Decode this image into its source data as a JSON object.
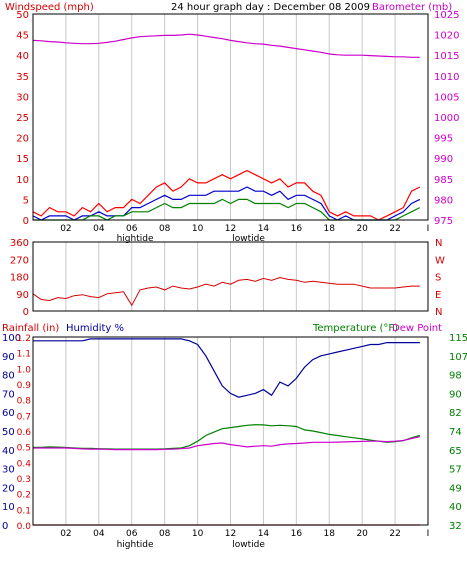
{
  "colors": {
    "wind": "#d40000",
    "windBright": "#ff0000",
    "gust": "#0000cc",
    "green": "#008000",
    "baro": "#cc00cc",
    "humidity": "#000099",
    "temperature": "#008000",
    "dewpoint": "#cc00cc",
    "rain": "#d40000",
    "grid": "#c8c8c8",
    "axis": "#000000"
  },
  "chart_data": [
    {
      "id": "wind-baro",
      "type": "line",
      "title": "24 hour graph day : December 08 2009",
      "ylabel_left": "Windspeed (mph)",
      "ylabel_right": "Barometer (mb)",
      "yticks_left": [
        "0",
        "5",
        "10",
        "15",
        "20",
        "25",
        "30",
        "35",
        "40",
        "45",
        "50"
      ],
      "yticks_right": [
        "975",
        "980",
        "985",
        "990",
        "995",
        "1000",
        "1005",
        "1010",
        "1015",
        "1020",
        "1025"
      ],
      "ylim_left": [
        0,
        50
      ],
      "ylim_right": [
        975,
        1025
      ],
      "xticks": [
        "02",
        "04",
        "06",
        "08",
        "10",
        "12",
        "14",
        "16",
        "18",
        "20",
        "22",
        "I"
      ],
      "x_annotations": [
        {
          "text": "hightide",
          "x": 6.2
        },
        {
          "text": "lowtide",
          "x": 13.1
        }
      ],
      "grid": true,
      "x": [
        0,
        0.5,
        1,
        1.5,
        2,
        2.5,
        3,
        3.5,
        4,
        4.5,
        5,
        5.5,
        6,
        6.5,
        7,
        7.5,
        8,
        8.5,
        9,
        9.5,
        10,
        10.5,
        11,
        11.5,
        12,
        12.5,
        13,
        13.5,
        14,
        14.5,
        15,
        15.5,
        16,
        16.5,
        17,
        17.5,
        18,
        18.5,
        19,
        19.5,
        20,
        20.5,
        21,
        21.5,
        22,
        22.5,
        23,
        23.5
      ],
      "series": [
        {
          "name": "",
          "color_key": "windBright",
          "values": [
            2,
            1,
            3,
            2,
            2,
            1,
            3,
            2,
            4,
            2,
            3,
            3,
            5,
            4,
            6,
            8,
            9,
            7,
            8,
            10,
            9,
            9,
            10,
            11,
            10,
            11,
            12,
            11,
            10,
            9,
            10,
            8,
            9,
            9,
            7,
            6,
            2,
            1,
            2,
            1,
            1,
            1,
            0,
            1,
            2,
            3,
            7,
            8
          ]
        },
        {
          "name": "",
          "color_key": "gust",
          "values": [
            1,
            0,
            1,
            1,
            1,
            0,
            1,
            1,
            2,
            1,
            1,
            1,
            3,
            3,
            4,
            5,
            6,
            5,
            5,
            6,
            6,
            6,
            7,
            7,
            7,
            7,
            8,
            7,
            7,
            6,
            7,
            5,
            6,
            6,
            5,
            4,
            1,
            0,
            1,
            0,
            0,
            0,
            0,
            0,
            1,
            2,
            4,
            5
          ]
        },
        {
          "name": "",
          "color_key": "green",
          "values": [
            0,
            0,
            0,
            0,
            0,
            0,
            0,
            1,
            1,
            0,
            1,
            1,
            2,
            2,
            2,
            3,
            4,
            3,
            3,
            4,
            4,
            4,
            4,
            5,
            4,
            5,
            5,
            4,
            4,
            4,
            4,
            3,
            4,
            4,
            3,
            2,
            0,
            0,
            0,
            0,
            0,
            0,
            0,
            0,
            0,
            1,
            2,
            3
          ]
        },
        {
          "name": "",
          "color_key": "baro",
          "axis": "right",
          "values": [
            1018.6,
            1018.5,
            1018.3,
            1018.2,
            1018.0,
            1017.9,
            1017.8,
            1017.8,
            1017.9,
            1018.1,
            1018.4,
            1018.8,
            1019.2,
            1019.5,
            1019.6,
            1019.7,
            1019.8,
            1019.8,
            1019.9,
            1020.1,
            1019.9,
            1019.6,
            1019.3,
            1019.0,
            1018.6,
            1018.3,
            1018.0,
            1017.8,
            1017.7,
            1017.4,
            1017.2,
            1016.9,
            1016.6,
            1016.3,
            1016.0,
            1015.7,
            1015.3,
            1015.1,
            1015.0,
            1015.0,
            1015.0,
            1014.9,
            1014.8,
            1014.7,
            1014.6,
            1014.6,
            1014.5,
            1014.5
          ]
        }
      ]
    },
    {
      "id": "wind-direction",
      "type": "line",
      "yticks_left": [
        "360",
        "270",
        "180",
        "90",
        "0"
      ],
      "yticks_right": [
        "N",
        "W",
        "S",
        "E",
        "N"
      ],
      "ylim": [
        0,
        360
      ],
      "grid": true,
      "x": [
        0,
        0.5,
        1,
        1.5,
        2,
        2.5,
        3,
        3.5,
        4,
        4.5,
        5,
        5.5,
        6,
        6.5,
        7,
        7.5,
        8,
        8.5,
        9,
        9.5,
        10,
        10.5,
        11,
        11.5,
        12,
        12.5,
        13,
        13.5,
        14,
        14.5,
        15,
        15.5,
        16,
        16.5,
        17,
        17.5,
        18,
        18.5,
        19,
        19.5,
        20,
        20.5,
        21,
        21.5,
        22,
        22.5,
        23,
        23.5
      ],
      "series": [
        {
          "name": "",
          "color_key": "wind",
          "values": [
            90,
            60,
            55,
            70,
            65,
            80,
            85,
            75,
            70,
            90,
            95,
            100,
            30,
            110,
            120,
            125,
            110,
            130,
            120,
            115,
            125,
            140,
            130,
            150,
            140,
            160,
            165,
            155,
            170,
            160,
            175,
            165,
            160,
            150,
            155,
            150,
            145,
            140,
            140,
            140,
            130,
            120,
            120,
            120,
            120,
            125,
            130,
            130
          ]
        }
      ]
    },
    {
      "id": "rain-humidity-temp",
      "type": "line",
      "ylabel_left": "Rainfall (in)",
      "ylabel_left2": "Humidity %",
      "ylabel_right": "Temperature (°F)",
      "ylabel_right2": "Dew Point",
      "yticks_humidity": [
        "0",
        "10",
        "20",
        "30",
        "40",
        "50",
        "60",
        "70",
        "80",
        "90",
        "100"
      ],
      "yticks_rain": [
        "0.0",
        "0.1",
        "0.2",
        "0.3",
        "0.4",
        "0.5",
        "0.6",
        "0.7",
        "0.8",
        "0.9",
        "1.0",
        "1.1",
        "1.2"
      ],
      "yticks_right": [
        "32",
        "40",
        "49",
        "57",
        "65",
        "74",
        "82",
        "90",
        "98",
        "107",
        "115"
      ],
      "ylim_humidity": [
        0,
        100
      ],
      "ylim_rain": [
        0,
        1.2
      ],
      "ylim_temp": [
        32,
        115
      ],
      "xticks": [
        "02",
        "04",
        "06",
        "08",
        "10",
        "12",
        "14",
        "16",
        "18",
        "20",
        "22",
        "I"
      ],
      "x_annotations": [
        {
          "text": "hightide",
          "x": 6.2
        },
        {
          "text": "lowtide",
          "x": 13.1
        }
      ],
      "grid": true,
      "x": [
        0,
        0.5,
        1,
        1.5,
        2,
        2.5,
        3,
        3.5,
        4,
        4.5,
        5,
        5.5,
        6,
        6.5,
        7,
        7.5,
        8,
        8.5,
        9,
        9.5,
        10,
        10.5,
        11,
        11.5,
        12,
        12.5,
        13,
        13.5,
        14,
        14.5,
        15,
        15.5,
        16,
        16.5,
        17,
        17.5,
        18,
        18.5,
        19,
        19.5,
        20,
        20.5,
        21,
        21.5,
        22,
        22.5,
        23,
        23.5
      ],
      "series": [
        {
          "name": "Humidity %",
          "color_key": "humidity",
          "values": [
            98,
            98,
            98,
            98,
            98,
            98,
            98,
            99,
            99,
            99,
            99,
            99,
            99,
            99,
            99,
            99,
            99,
            99,
            99,
            98,
            96,
            90,
            82,
            74,
            70,
            68,
            69,
            70,
            72,
            69,
            76,
            74,
            78,
            84,
            88,
            90,
            91,
            92,
            93,
            94,
            95,
            96,
            96,
            97,
            97,
            97,
            97,
            97
          ]
        },
        {
          "name": "Temperature (°F)",
          "color_key": "temperature",
          "axis": "temp",
          "values": [
            66.3,
            66.3,
            66.5,
            66.4,
            66.2,
            66.0,
            65.8,
            65.8,
            65.7,
            65.6,
            65.5,
            65.5,
            65.5,
            65.5,
            65.5,
            65.5,
            65.6,
            65.8,
            66.0,
            67.0,
            69.0,
            71.5,
            73.0,
            74.5,
            75.0,
            75.5,
            76.0,
            76.3,
            76.2,
            75.8,
            76.0,
            75.8,
            75.5,
            74.0,
            73.5,
            72.8,
            72.0,
            71.5,
            71.0,
            70.5,
            70.0,
            69.5,
            69.0,
            68.5,
            68.8,
            69.2,
            70.5,
            71.5
          ]
        },
        {
          "name": "Dew Point",
          "color_key": "dewpoint",
          "axis": "temp",
          "values": [
            66.0,
            66.0,
            66.0,
            66.0,
            66.0,
            65.8,
            65.6,
            65.5,
            65.5,
            65.4,
            65.3,
            65.3,
            65.3,
            65.3,
            65.3,
            65.3,
            65.4,
            65.5,
            65.7,
            66.0,
            67.0,
            67.5,
            68.0,
            68.2,
            67.5,
            67.0,
            66.5,
            66.8,
            67.0,
            66.8,
            67.5,
            67.8,
            68.0,
            68.2,
            68.5,
            68.5,
            68.5,
            68.6,
            68.7,
            68.8,
            68.9,
            69.0,
            69.0,
            68.8,
            69.0,
            69.3,
            70.2,
            71.0
          ]
        },
        {
          "name": "Rainfall (in)",
          "color_key": "rain",
          "axis": "rain",
          "values": [
            0,
            0,
            0,
            0,
            0,
            0,
            0,
            0,
            0,
            0,
            0,
            0,
            0,
            0,
            0,
            0,
            0,
            0,
            0,
            0,
            0,
            0,
            0,
            0,
            0,
            0,
            0,
            0,
            0,
            0,
            0,
            0,
            0,
            0,
            0,
            0,
            0,
            0,
            0,
            0,
            0,
            0,
            0,
            0,
            0,
            0,
            0,
            0
          ]
        }
      ]
    }
  ]
}
